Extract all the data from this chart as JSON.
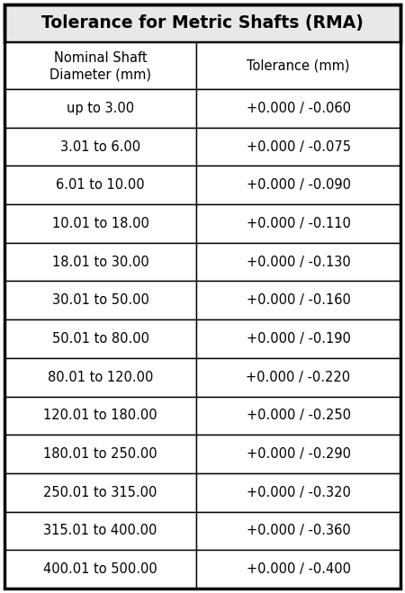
{
  "title": "Tolerance for Metric Shafts (RMA)",
  "col1_header_line1": "Nominal Shaft",
  "col1_header_line2": "Diameter (mm)",
  "col2_header": "Tolerance (mm)",
  "rows": [
    [
      "up to 3.00",
      "+0.000 / -0.060"
    ],
    [
      "3.01 to 6.00",
      "+0.000 / -0.075"
    ],
    [
      "6.01 to 10.00",
      "+0.000 / -0.090"
    ],
    [
      "10.01 to 18.00",
      "+0.000 / -0.110"
    ],
    [
      "18.01 to 30.00",
      "+0.000 / -0.130"
    ],
    [
      "30.01 to 50.00",
      "+0.000 / -0.160"
    ],
    [
      "50.01 to 80.00",
      "+0.000 / -0.190"
    ],
    [
      "80.01 to 120.00",
      "+0.000 / -0.220"
    ],
    [
      "120.01 to 180.00",
      "+0.000 / -0.250"
    ],
    [
      "180.01 to 250.00",
      "+0.000 / -0.290"
    ],
    [
      "250.01 to 315.00",
      "+0.000 / -0.320"
    ],
    [
      "315.01 to 400.00",
      "+0.000 / -0.360"
    ],
    [
      "400.01 to 500.00",
      "+0.000 / -0.400"
    ]
  ],
  "title_fontsize": 13.5,
  "header_fontsize": 10.5,
  "cell_fontsize": 10.5,
  "title_bg_color": "#e8e8e8",
  "header_bg_color": "#ffffff",
  "row_bg_color": "#ffffff",
  "border_color": "#000000",
  "text_color": "#000000",
  "title_font_weight": "bold",
  "outer_border_lw": 2.5,
  "inner_border_lw": 1.0,
  "fig_width": 4.5,
  "fig_height": 6.59,
  "dpi": 100
}
